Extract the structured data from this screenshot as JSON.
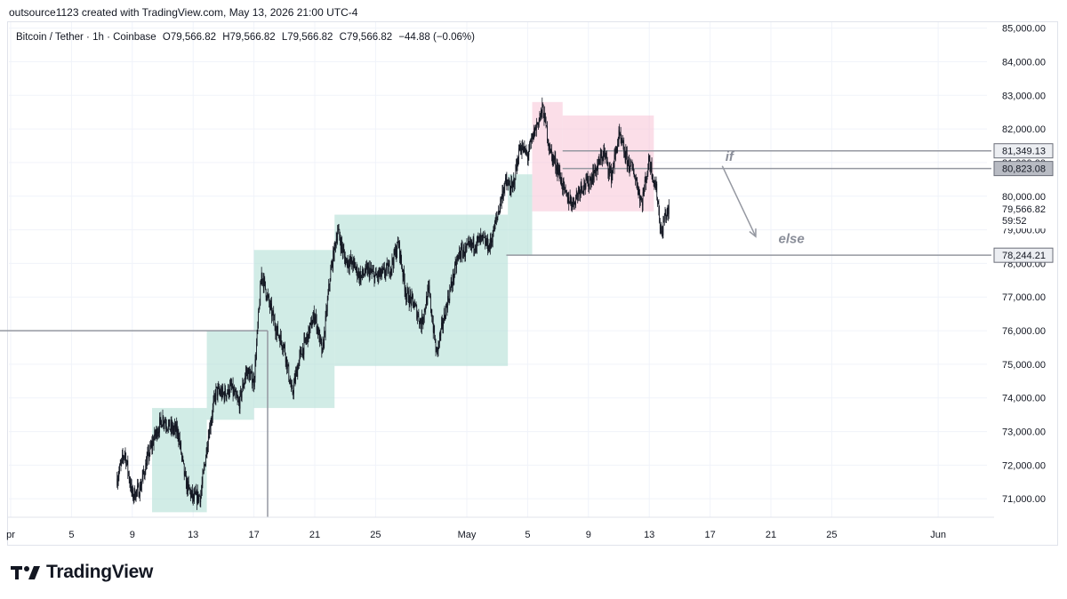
{
  "header": {
    "attribution": "outsource1123 created with TradingView.com, May 13, 2026 21:00 UTC-4"
  },
  "legend": {
    "symbol": "Bitcoin / Tether · 1h · Coinbase",
    "open": "O79,566.82",
    "high": "H79,566.82",
    "low": "L79,566.82",
    "close": "C79,566.82",
    "change": "−44.88 (−0.06%)"
  },
  "brand": {
    "name": "TradingView"
  },
  "colors": {
    "candle": "#131722",
    "demand_zone": "#b2dfd6",
    "supply_zone": "#f8c8d8",
    "level_line": "#9598a1",
    "price_tag_bg": "#131722",
    "annotation": "#8a8e99"
  },
  "chart_data": {
    "type": "candlestick",
    "symbol": "Bitcoin / Tether",
    "interval": "1h",
    "exchange": "Coinbase",
    "ylim": [
      70300,
      85200
    ],
    "y_ticks": [
      "85,000.00",
      "84,000.00",
      "83,000.00",
      "82,000.00",
      "81,000.00",
      "80,000.00",
      "79,000.00",
      "78,000.00",
      "77,000.00",
      "76,000.00",
      "75,000.00",
      "74,000.00",
      "73,000.00",
      "72,000.00",
      "71,000.00"
    ],
    "y_tick_values": [
      85000,
      84000,
      83000,
      82000,
      81000,
      80000,
      79000,
      78000,
      77000,
      76000,
      75000,
      74000,
      73000,
      72000,
      71000
    ],
    "x_ticks": [
      {
        "label": "pr",
        "day": 1
      },
      {
        "label": "5",
        "day": 5
      },
      {
        "label": "9",
        "day": 9
      },
      {
        "label": "13",
        "day": 13
      },
      {
        "label": "17",
        "day": 17
      },
      {
        "label": "21",
        "day": 21
      },
      {
        "label": "25",
        "day": 25
      },
      {
        "label": "May",
        "day": 31
      },
      {
        "label": "5",
        "day": 35
      },
      {
        "label": "9",
        "day": 39
      },
      {
        "label": "13",
        "day": 43
      },
      {
        "label": "17",
        "day": 47
      },
      {
        "label": "21",
        "day": 51
      },
      {
        "label": "25",
        "day": 55
      },
      {
        "label": "Jun",
        "day": 62
      }
    ],
    "price_path": [
      [
        8.0,
        71600
      ],
      [
        8.5,
        72400
      ],
      [
        9.0,
        71100
      ],
      [
        9.5,
        71300
      ],
      [
        10.0,
        72200
      ],
      [
        10.5,
        72900
      ],
      [
        11.0,
        73400
      ],
      [
        11.5,
        73100
      ],
      [
        12.0,
        73000
      ],
      [
        12.5,
        71500
      ],
      [
        13.0,
        71000
      ],
      [
        13.5,
        71100
      ],
      [
        14.0,
        72900
      ],
      [
        14.5,
        74200
      ],
      [
        15.0,
        74100
      ],
      [
        15.5,
        74300
      ],
      [
        16.0,
        73800
      ],
      [
        16.5,
        74800
      ],
      [
        17.0,
        74500
      ],
      [
        17.5,
        77700
      ],
      [
        18.0,
        76800
      ],
      [
        18.5,
        76000
      ],
      [
        19.0,
        75500
      ],
      [
        19.5,
        74100
      ],
      [
        20.0,
        75200
      ],
      [
        20.5,
        75800
      ],
      [
        21.0,
        76500
      ],
      [
        21.5,
        75300
      ],
      [
        22.0,
        77600
      ],
      [
        22.5,
        79000
      ],
      [
        23.0,
        78100
      ],
      [
        23.5,
        78000
      ],
      [
        24.0,
        77600
      ],
      [
        24.5,
        77800
      ],
      [
        25.0,
        77600
      ],
      [
        25.5,
        77700
      ],
      [
        26.0,
        77900
      ],
      [
        26.5,
        78600
      ],
      [
        27.0,
        77100
      ],
      [
        27.5,
        76800
      ],
      [
        28.0,
        76200
      ],
      [
        28.5,
        77200
      ],
      [
        29.0,
        75300
      ],
      [
        29.5,
        76400
      ],
      [
        30.0,
        77400
      ],
      [
        30.5,
        78300
      ],
      [
        31.0,
        78400
      ],
      [
        31.5,
        78600
      ],
      [
        32.0,
        78700
      ],
      [
        32.5,
        78500
      ],
      [
        33.0,
        79400
      ],
      [
        33.5,
        80400
      ],
      [
        34.0,
        80200
      ],
      [
        34.5,
        81500
      ],
      [
        35.0,
        81200
      ],
      [
        35.5,
        82000
      ],
      [
        36.0,
        82600
      ],
      [
        36.5,
        81300
      ],
      [
        37.0,
        80800
      ],
      [
        37.5,
        80000
      ],
      [
        38.0,
        79800
      ],
      [
        38.5,
        80300
      ],
      [
        39.0,
        80400
      ],
      [
        39.5,
        80800
      ],
      [
        40.0,
        81300
      ],
      [
        40.5,
        80600
      ],
      [
        41.0,
        81800
      ],
      [
        41.5,
        81100
      ],
      [
        42.0,
        80700
      ],
      [
        42.5,
        79800
      ],
      [
        43.0,
        81100
      ],
      [
        43.5,
        80100
      ],
      [
        43.8,
        78800
      ],
      [
        44.0,
        79400
      ],
      [
        44.3,
        79567
      ]
    ],
    "zones": [
      {
        "type": "demand",
        "from_day": 10.3,
        "to_day": 13.9,
        "high": 73700,
        "low": 70600
      },
      {
        "type": "demand",
        "from_day": 13.9,
        "to_day": 17.0,
        "high": 76000,
        "low": 73350
      },
      {
        "type": "demand",
        "from_day": 17.0,
        "to_day": 22.3,
        "high": 78400,
        "low": 73700
      },
      {
        "type": "demand",
        "from_day": 22.3,
        "to_day": 33.7,
        "high": 79450,
        "low": 74950
      },
      {
        "type": "demand",
        "from_day": 33.7,
        "to_day": 35.3,
        "high": 80650,
        "low": 78250
      },
      {
        "type": "supply",
        "from_day": 35.3,
        "to_day": 37.3,
        "high": 82800,
        "low": 79550
      },
      {
        "type": "supply",
        "from_day": 37.3,
        "to_day": 43.3,
        "high": 82400,
        "low": 79550
      }
    ],
    "lines": [
      {
        "price": 76000,
        "from_day": 0.0,
        "to_day": 17.9
      },
      {
        "price": 81349.13,
        "from_day": 37.3,
        "to_day": 65.5
      },
      {
        "price": 80823.08,
        "from_day": 37.3,
        "to_day": 65.5
      },
      {
        "price": 78244.21,
        "from_day": 33.6,
        "to_day": 65.5
      }
    ],
    "vertical_markers": [
      {
        "day": 17.9,
        "from_price": 76000,
        "to_price": 70300
      }
    ],
    "price_labels": [
      {
        "text": "81,349.13",
        "price": 81349.13,
        "style": "box"
      },
      {
        "text": "80,823.08",
        "price": 80823.08,
        "style": "filled"
      },
      {
        "text": "78,244.21",
        "price": 78244.21,
        "style": "box"
      }
    ],
    "last_price": {
      "text": "79,566.82",
      "countdown": "59:52",
      "price": 79566.82
    },
    "annotations": [
      {
        "text": "if",
        "day": 48.0,
        "price": 81050
      },
      {
        "text": "else",
        "day": 51.5,
        "price": 78600
      }
    ],
    "arrow": {
      "from_day": 47.8,
      "from_price": 80900,
      "to_day": 50.0,
      "to_price": 78800
    }
  }
}
